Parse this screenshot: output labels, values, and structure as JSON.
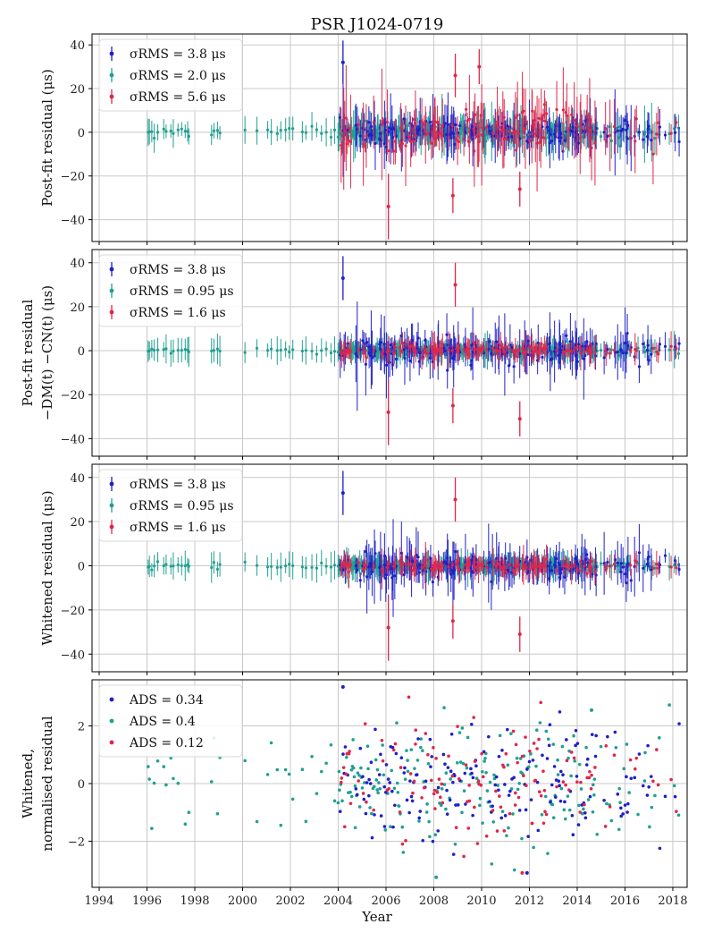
{
  "chart_data": [
    {
      "type": "scatter",
      "panel": "top",
      "title": "PSR J1024-0719",
      "ylabel": "Post-fit residual (μs)",
      "ylim": [
        -50,
        45
      ],
      "yticks": [
        -40,
        -20,
        0,
        20,
        40
      ],
      "grid": true,
      "legend_position": "top-left",
      "series": [
        {
          "name": "σRMS = 3.8 μs",
          "color": "#1f1fc8",
          "scatter_sigma": 3.8
        },
        {
          "name": "σRMS = 2.0 μs",
          "color": "#20a090",
          "scatter_sigma": 2.0
        },
        {
          "name": "σRMS = 5.6 μs",
          "color": "#e0264a",
          "scatter_sigma": 5.6
        }
      ],
      "highlighted_points": [
        {
          "x": 2004.2,
          "y": 32,
          "err": 10,
          "series": 0
        },
        {
          "x": 2006.1,
          "y": -34,
          "err": 15,
          "series": 2
        },
        {
          "x": 2008.9,
          "y": 26,
          "err": 10,
          "series": 2
        },
        {
          "x": 2008.8,
          "y": -29,
          "err": 8,
          "series": 2
        },
        {
          "x": 2011.6,
          "y": -26,
          "err": 8,
          "series": 2
        },
        {
          "x": 2009.9,
          "y": 30,
          "err": 8,
          "series": 2
        }
      ]
    },
    {
      "type": "scatter",
      "panel": "second",
      "ylabel_line1": "Post-fit residual",
      "ylabel_line2": "−DM(t) −CN(t) (μs)",
      "ylim": [
        -48,
        46
      ],
      "yticks": [
        -40,
        -20,
        0,
        20,
        40
      ],
      "grid": true,
      "legend_position": "top-left",
      "series": [
        {
          "name": "σRMS = 3.8 μs",
          "color": "#1f1fc8",
          "scatter_sigma": 3.8
        },
        {
          "name": "σRMS = 0.95 μs",
          "color": "#20a090",
          "scatter_sigma": 0.95
        },
        {
          "name": "σRMS = 1.6 μs",
          "color": "#e0264a",
          "scatter_sigma": 1.6
        }
      ],
      "highlighted_points": [
        {
          "x": 2004.2,
          "y": 33,
          "err": 10,
          "series": 0
        },
        {
          "x": 2006.1,
          "y": -28,
          "err": 15,
          "series": 2
        },
        {
          "x": 2008.9,
          "y": 30,
          "err": 10,
          "series": 2
        },
        {
          "x": 2008.8,
          "y": -25,
          "err": 8,
          "series": 2
        },
        {
          "x": 2011.6,
          "y": -31,
          "err": 8,
          "series": 2
        }
      ]
    },
    {
      "type": "scatter",
      "panel": "third",
      "ylabel": "Whitened residual (μs)",
      "ylim": [
        -48,
        46
      ],
      "yticks": [
        -40,
        -20,
        0,
        20,
        40
      ],
      "grid": true,
      "legend_position": "top-left",
      "series": [
        {
          "name": "σRMS = 3.8 μs",
          "color": "#1f1fc8",
          "scatter_sigma": 3.8
        },
        {
          "name": "σRMS = 0.95 μs",
          "color": "#20a090",
          "scatter_sigma": 0.95
        },
        {
          "name": "σRMS = 1.6 μs",
          "color": "#e0264a",
          "scatter_sigma": 1.6
        }
      ],
      "highlighted_points": [
        {
          "x": 2004.2,
          "y": 33,
          "err": 10,
          "series": 0
        },
        {
          "x": 2006.1,
          "y": -28,
          "err": 15,
          "series": 2
        },
        {
          "x": 2008.9,
          "y": 30,
          "err": 10,
          "series": 2
        },
        {
          "x": 2008.8,
          "y": -25,
          "err": 8,
          "series": 2
        },
        {
          "x": 2011.6,
          "y": -31,
          "err": 8,
          "series": 2
        }
      ]
    },
    {
      "type": "scatter",
      "panel": "bottom",
      "ylabel_line1": "Whitened,",
      "ylabel_line2": "normalised residual",
      "xlabel": "Year",
      "ylim": [
        -3.6,
        3.6
      ],
      "yticks": [
        -2,
        0,
        2
      ],
      "grid": true,
      "legend_position": "top-left",
      "series": [
        {
          "name": "ADS = 0.34",
          "color": "#1f1fc8",
          "scatter_sigma": 1.0
        },
        {
          "name": "ADS = 0.4",
          "color": "#20a090",
          "scatter_sigma": 1.0
        },
        {
          "name": "ADS = 0.12",
          "color": "#e0264a",
          "scatter_sigma": 1.0
        }
      ],
      "highlighted_points": [
        {
          "x": 2004.2,
          "y": 3.35,
          "series": 0
        },
        {
          "x": 2008.1,
          "y": -3.25,
          "series": 1
        },
        {
          "x": 2011.9,
          "y": -3.1,
          "series": 0
        },
        {
          "x": 2011.7,
          "y": -3.1,
          "series": 2
        },
        {
          "x": 2014.6,
          "y": 2.55,
          "series": 1
        }
      ]
    }
  ],
  "x_axis": {
    "xlim": [
      1993.7,
      2018.6
    ],
    "ticks": [
      1994,
      1996,
      1998,
      2000,
      2002,
      2004,
      2006,
      2008,
      2010,
      2012,
      2014,
      2016,
      2018
    ],
    "label": "Year"
  },
  "colors": {
    "blue": "#1f1fc8",
    "teal": "#20a090",
    "red": "#e0264a"
  }
}
